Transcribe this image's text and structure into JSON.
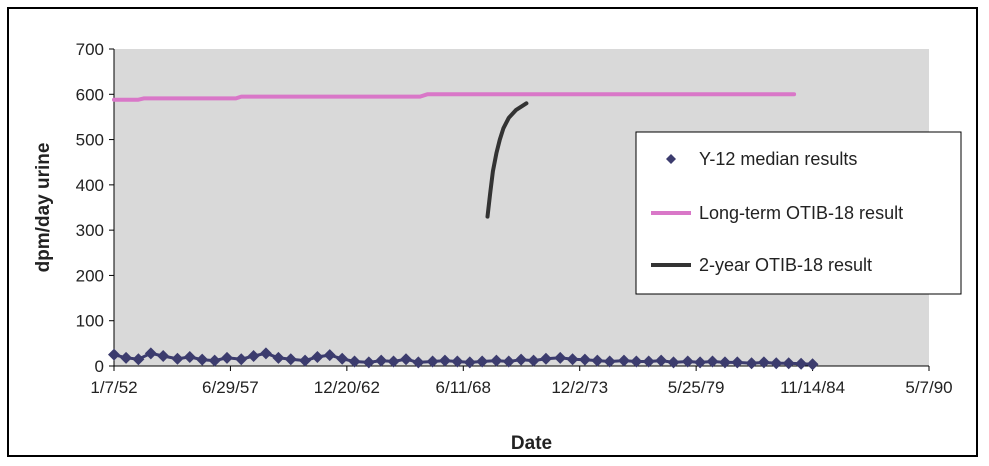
{
  "chart_data": {
    "type": "line",
    "xlabel": "Date",
    "ylabel": "dpm/day urine",
    "ylim": [
      0,
      700
    ],
    "yticks": [
      0,
      100,
      200,
      300,
      400,
      500,
      600,
      700
    ],
    "xlim": [
      "1952-01-07",
      "1990-05-07"
    ],
    "xtick_labels": [
      "1/7/52",
      "6/29/57",
      "12/20/62",
      "6/11/68",
      "12/2/73",
      "5/25/79",
      "11/14/84",
      "5/7/90"
    ],
    "grid": false,
    "background": "#d9d9d9",
    "legend_position": "right",
    "series": [
      {
        "name": "Y-12 median results",
        "style": "diamond-markers",
        "color": "#3c3c6e",
        "x": [
          "1952-01-07",
          "1952-08-01",
          "1953-03-01",
          "1953-10-01",
          "1954-05-01",
          "1955-01-01",
          "1955-08-01",
          "1956-03-01",
          "1956-10-01",
          "1957-05-01",
          "1958-01-01",
          "1958-08-01",
          "1959-03-01",
          "1959-10-01",
          "1960-05-01",
          "1961-01-01",
          "1961-08-01",
          "1962-03-01",
          "1962-10-01",
          "1963-05-01",
          "1964-01-01",
          "1964-08-01",
          "1965-03-01",
          "1965-10-01",
          "1966-05-01",
          "1967-01-01",
          "1967-08-01",
          "1968-03-01",
          "1968-10-01",
          "1969-05-01",
          "1970-01-01",
          "1970-08-01",
          "1971-03-01",
          "1971-10-01",
          "1972-05-01",
          "1973-01-01",
          "1973-08-01",
          "1974-03-01",
          "1974-10-01",
          "1975-05-01",
          "1976-01-01",
          "1976-08-01",
          "1977-03-01",
          "1977-10-01",
          "1978-05-01",
          "1979-01-01",
          "1979-08-01",
          "1980-03-01",
          "1980-10-01",
          "1981-05-01",
          "1982-01-01",
          "1982-08-01",
          "1983-03-01",
          "1983-10-01",
          "1984-05-01",
          "1984-11-14"
        ],
        "values": [
          25,
          18,
          15,
          28,
          22,
          16,
          20,
          14,
          12,
          18,
          15,
          22,
          28,
          18,
          15,
          12,
          20,
          24,
          16,
          10,
          8,
          12,
          10,
          15,
          8,
          10,
          12,
          10,
          8,
          10,
          12,
          10,
          14,
          12,
          16,
          18,
          15,
          14,
          12,
          10,
          12,
          10,
          10,
          12,
          8,
          10,
          8,
          10,
          8,
          8,
          6,
          8,
          6,
          6,
          5,
          4
        ]
      },
      {
        "name": "Long-term OTIB-18 result",
        "style": "line",
        "color": "#d977c8",
        "x": [
          "1952-01-07",
          "1953-03-01",
          "1953-06-01",
          "1957-10-01",
          "1958-01-01",
          "1966-06-01",
          "1966-10-01",
          "1984-01-01"
        ],
        "values": [
          588,
          588,
          591,
          591,
          595,
          595,
          600,
          600
        ]
      },
      {
        "name": "2-year OTIB-18 result",
        "style": "line",
        "color": "#333333",
        "x": [
          "1969-08-01",
          "1969-09-15",
          "1969-11-01",
          "1970-01-01",
          "1970-03-01",
          "1970-05-01",
          "1970-08-01",
          "1970-12-01",
          "1971-06-01"
        ],
        "values": [
          330,
          380,
          430,
          470,
          500,
          525,
          548,
          565,
          580
        ]
      }
    ]
  }
}
